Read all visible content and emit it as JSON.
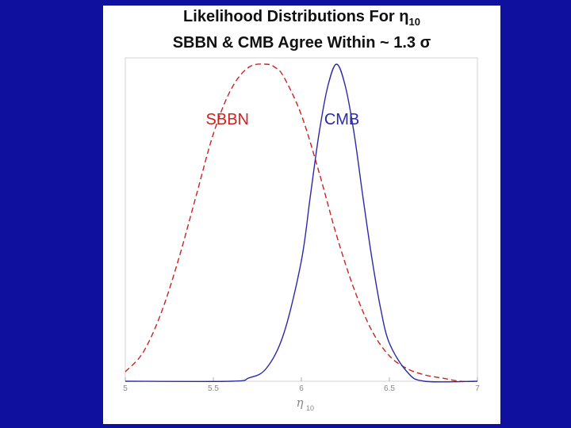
{
  "slide": {
    "title_line1": "Likelihood Distributions For η",
    "title_line1_subscript": "10",
    "title_line2": "SBBN & CMB Agree Within ~ 1.3 σ"
  },
  "colors": {
    "background": "#10109e",
    "sbbn": "#cc2222",
    "cmb": "#2a2aa8"
  },
  "chart_data": {
    "type": "line",
    "xlabel": "η",
    "xlabel_subscript": "10",
    "xlim": [
      5,
      7
    ],
    "xticks": [
      5,
      5.5,
      6,
      6.5,
      7
    ],
    "xtick_labels": [
      "5",
      "5.5",
      "6",
      "6.5",
      "7"
    ],
    "ylim": [
      0,
      1.02
    ],
    "series": [
      {
        "name": "SBBN",
        "style": "dashed",
        "color": "#cc2222",
        "x": [
          5.0,
          5.1,
          5.2,
          5.3,
          5.4,
          5.5,
          5.6,
          5.7,
          5.8,
          5.85,
          5.9,
          6.0,
          6.1,
          6.2,
          6.3,
          6.4,
          6.5,
          6.6,
          6.7,
          6.8,
          6.9,
          7.0
        ],
        "y": [
          0.03,
          0.09,
          0.21,
          0.38,
          0.58,
          0.78,
          0.92,
          0.99,
          1.0,
          0.99,
          0.96,
          0.84,
          0.66,
          0.46,
          0.29,
          0.16,
          0.08,
          0.04,
          0.02,
          0.01,
          0.0,
          0.0
        ]
      },
      {
        "name": "CMB",
        "style": "solid",
        "color": "#2a2aa8",
        "x": [
          5.0,
          5.6,
          5.7,
          5.8,
          5.9,
          6.0,
          6.05,
          6.1,
          6.15,
          6.2,
          6.25,
          6.3,
          6.35,
          6.4,
          6.45,
          6.5,
          6.6,
          6.7,
          7.0
        ],
        "y": [
          0.0,
          0.0,
          0.01,
          0.04,
          0.15,
          0.38,
          0.58,
          0.78,
          0.93,
          1.0,
          0.93,
          0.78,
          0.58,
          0.39,
          0.23,
          0.12,
          0.03,
          0.0,
          0.0
        ]
      }
    ],
    "annotations": [
      {
        "text": "SBBN",
        "color": "#cc2222",
        "x": 5.58,
        "y": 0.81
      },
      {
        "text": "CMB",
        "color": "#2a2aa8",
        "x": 6.23,
        "y": 0.81
      }
    ]
  }
}
